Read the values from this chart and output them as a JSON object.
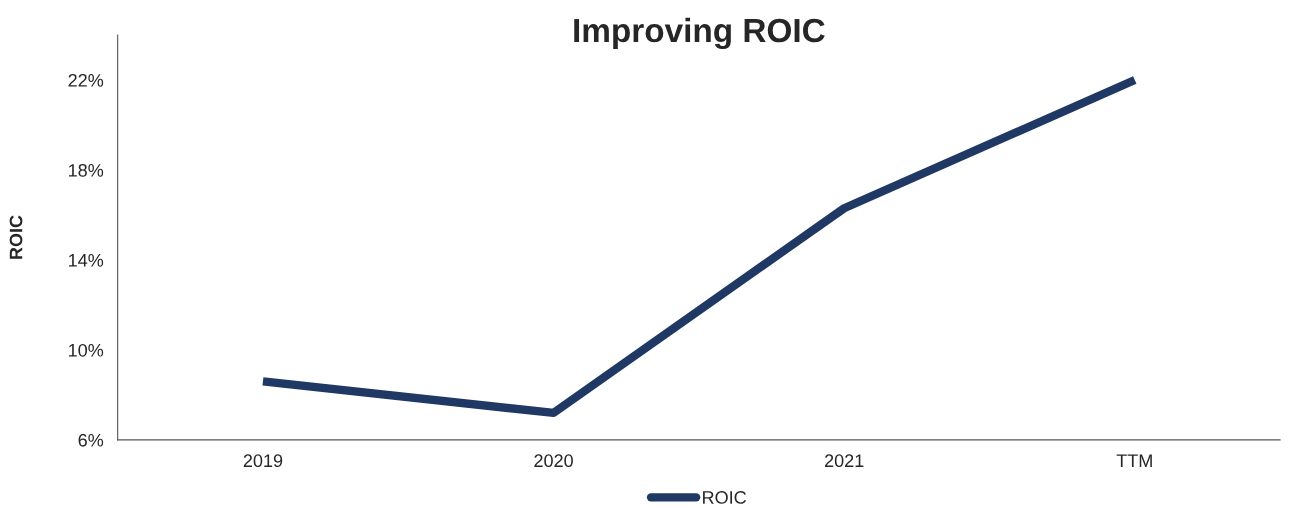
{
  "chart_data": {
    "type": "line",
    "title": "Improving ROIC",
    "ylabel": "ROIC",
    "categories": [
      "2019",
      "2020",
      "2021",
      "TTM"
    ],
    "series": [
      {
        "name": "ROIC",
        "color": "#203864",
        "values": [
          8.6,
          7.2,
          16.3,
          22.0
        ]
      }
    ],
    "ylim": [
      6,
      24
    ],
    "yticks": [
      {
        "value": 6,
        "label": "6%"
      },
      {
        "value": 10,
        "label": "10%"
      },
      {
        "value": 14,
        "label": "14%"
      },
      {
        "value": 18,
        "label": "18%"
      },
      {
        "value": 22,
        "label": "22%"
      }
    ],
    "legend": "bottom",
    "grid": false,
    "marker": "none",
    "line_style": "solid"
  }
}
